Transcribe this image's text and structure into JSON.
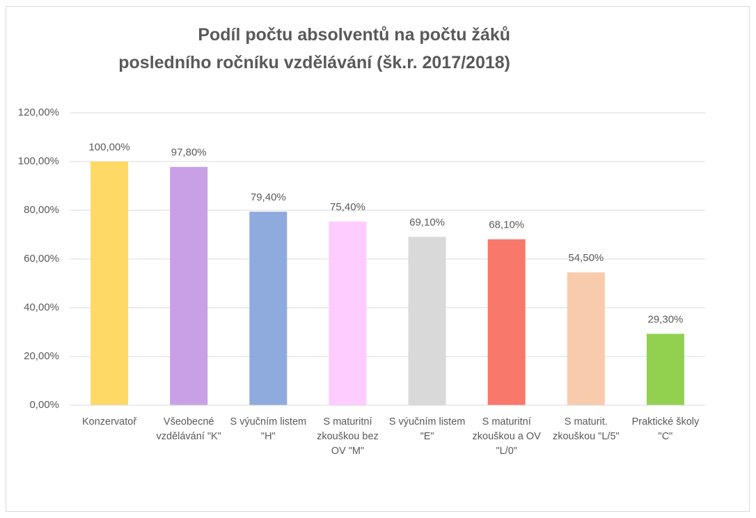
{
  "chart_data": {
    "type": "bar",
    "title": "Podíl počtu absolventů na počtu žáků posledního ročníku vzdělávání  (šk.r. 2017/2018)",
    "categories": [
      "Konzervatoř",
      "Všeobecné vzdělávání \"K\"",
      "S výučním listem \"H\"",
      "S maturitní zkouškou bez OV \"M\"",
      "S výučním listem \"E\"",
      "S maturitní zkouškou a OV \"L/0\"",
      "S maturit. zkouškou \"L/5\"",
      "Praktické školy \"C\""
    ],
    "values": [
      100,
      97.8,
      79.4,
      75.4,
      69.1,
      68.1,
      54.5,
      29.3
    ],
    "value_labels": [
      "100,00%",
      "97,80%",
      "79,40%",
      "75,40%",
      "69,10%",
      "68,10%",
      "54,50%",
      "29,30%"
    ],
    "colors": [
      "#FFD966",
      "#C9A0E6",
      "#8FAADC",
      "#FFCCFF",
      "#D9D9D9",
      "#F8786B",
      "#F8CBAD",
      "#92D050"
    ],
    "ylim": [
      0,
      120
    ],
    "yticks": [
      {
        "value": 0,
        "label": "0,00%"
      },
      {
        "value": 20,
        "label": "20,00%"
      },
      {
        "value": 40,
        "label": "40,00%"
      },
      {
        "value": 60,
        "label": "60,00%"
      },
      {
        "value": 80,
        "label": "80,00%"
      },
      {
        "value": 100,
        "label": "100,00%"
      },
      {
        "value": 120,
        "label": "120,00%"
      }
    ],
    "grid": true
  }
}
